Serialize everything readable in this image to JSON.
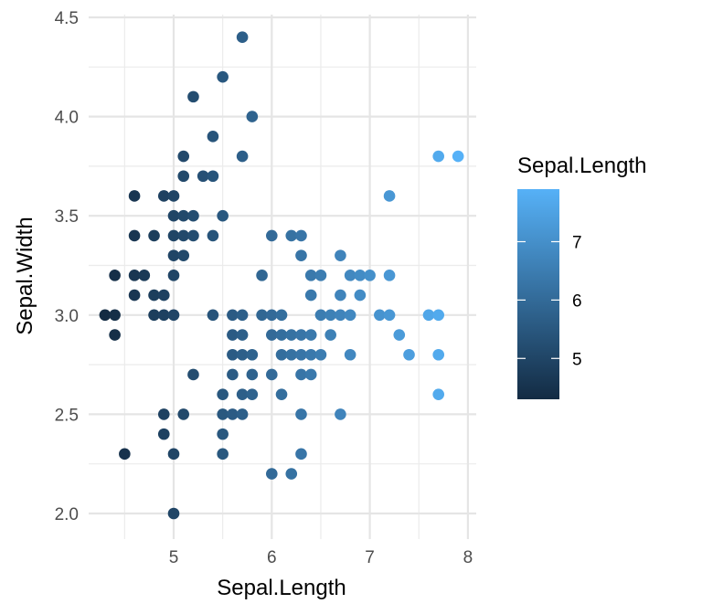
{
  "chart_data": {
    "type": "scatter",
    "xlabel": "Sepal.Length",
    "ylabel": "Sepal.Width",
    "xlim": [
      4.3,
      7.9
    ],
    "ylim": [
      2.0,
      4.4
    ],
    "x_ticks": [
      5,
      6,
      7,
      8
    ],
    "x_tick_labels": [
      "5",
      "6",
      "7",
      "8"
    ],
    "y_ticks": [
      2.0,
      2.5,
      3.0,
      3.5,
      4.0,
      4.5
    ],
    "y_tick_labels": [
      "2.0",
      "2.5",
      "3.0",
      "3.5",
      "4.0",
      "4.5"
    ],
    "grid": true,
    "color_by": "Sepal.Length",
    "legend": {
      "title": "Sepal.Length",
      "placement": "right",
      "type": "colorbar",
      "ticks": [
        5,
        6,
        7
      ],
      "tick_labels": [
        "5",
        "6",
        "7"
      ],
      "low_color": "#132B43",
      "high_color": "#56B1F7"
    },
    "points": [
      [
        4.3,
        3.0
      ],
      [
        4.4,
        3.0
      ],
      [
        4.4,
        2.9
      ],
      [
        4.4,
        3.2
      ],
      [
        4.5,
        2.3
      ],
      [
        4.6,
        3.6
      ],
      [
        4.6,
        3.4
      ],
      [
        4.6,
        3.2
      ],
      [
        4.6,
        3.1
      ],
      [
        4.7,
        3.2
      ],
      [
        4.8,
        3.4
      ],
      [
        4.8,
        3.0
      ],
      [
        4.8,
        3.1
      ],
      [
        4.9,
        3.6
      ],
      [
        4.9,
        3.1
      ],
      [
        4.9,
        3.0
      ],
      [
        4.9,
        2.5
      ],
      [
        4.9,
        2.4
      ],
      [
        5.0,
        3.6
      ],
      [
        5.0,
        3.5
      ],
      [
        5.0,
        3.4
      ],
      [
        5.0,
        3.3
      ],
      [
        5.0,
        3.2
      ],
      [
        5.0,
        3.0
      ],
      [
        5.0,
        2.3
      ],
      [
        5.0,
        2.0
      ],
      [
        5.1,
        3.8
      ],
      [
        5.1,
        3.7
      ],
      [
        5.1,
        3.5
      ],
      [
        5.1,
        3.4
      ],
      [
        5.1,
        3.3
      ],
      [
        5.1,
        2.5
      ],
      [
        5.2,
        4.1
      ],
      [
        5.2,
        3.5
      ],
      [
        5.2,
        3.4
      ],
      [
        5.2,
        2.7
      ],
      [
        5.3,
        3.7
      ],
      [
        5.4,
        3.9
      ],
      [
        5.4,
        3.7
      ],
      [
        5.4,
        3.4
      ],
      [
        5.4,
        3.0
      ],
      [
        5.5,
        4.2
      ],
      [
        5.5,
        3.5
      ],
      [
        5.5,
        2.6
      ],
      [
        5.5,
        2.5
      ],
      [
        5.5,
        2.4
      ],
      [
        5.5,
        2.3
      ],
      [
        5.6,
        3.0
      ],
      [
        5.6,
        2.9
      ],
      [
        5.6,
        2.8
      ],
      [
        5.6,
        2.7
      ],
      [
        5.6,
        2.5
      ],
      [
        5.7,
        4.4
      ],
      [
        5.7,
        3.8
      ],
      [
        5.7,
        3.0
      ],
      [
        5.7,
        2.9
      ],
      [
        5.7,
        2.8
      ],
      [
        5.7,
        2.6
      ],
      [
        5.7,
        2.5
      ],
      [
        5.8,
        4.0
      ],
      [
        5.8,
        2.8
      ],
      [
        5.8,
        2.7
      ],
      [
        5.8,
        2.6
      ],
      [
        5.9,
        3.2
      ],
      [
        5.9,
        3.0
      ],
      [
        6.0,
        3.4
      ],
      [
        6.0,
        3.0
      ],
      [
        6.0,
        2.9
      ],
      [
        6.0,
        2.7
      ],
      [
        6.0,
        2.2
      ],
      [
        6.1,
        3.0
      ],
      [
        6.1,
        2.9
      ],
      [
        6.1,
        2.8
      ],
      [
        6.1,
        2.6
      ],
      [
        6.2,
        3.4
      ],
      [
        6.2,
        2.9
      ],
      [
        6.2,
        2.8
      ],
      [
        6.2,
        2.2
      ],
      [
        6.3,
        3.4
      ],
      [
        6.3,
        3.3
      ],
      [
        6.3,
        2.9
      ],
      [
        6.3,
        2.8
      ],
      [
        6.3,
        2.7
      ],
      [
        6.3,
        2.5
      ],
      [
        6.3,
        2.3
      ],
      [
        6.4,
        3.2
      ],
      [
        6.4,
        3.1
      ],
      [
        6.4,
        2.9
      ],
      [
        6.4,
        2.8
      ],
      [
        6.4,
        2.7
      ],
      [
        6.5,
        3.2
      ],
      [
        6.5,
        3.0
      ],
      [
        6.5,
        2.8
      ],
      [
        6.6,
        3.0
      ],
      [
        6.6,
        2.9
      ],
      [
        6.7,
        3.3
      ],
      [
        6.7,
        3.1
      ],
      [
        6.7,
        3.0
      ],
      [
        6.7,
        2.5
      ],
      [
        6.8,
        3.2
      ],
      [
        6.8,
        3.0
      ],
      [
        6.8,
        2.8
      ],
      [
        6.9,
        3.2
      ],
      [
        6.9,
        3.1
      ],
      [
        7.0,
        3.2
      ],
      [
        7.1,
        3.0
      ],
      [
        7.2,
        3.6
      ],
      [
        7.2,
        3.2
      ],
      [
        7.2,
        3.0
      ],
      [
        7.3,
        2.9
      ],
      [
        7.4,
        2.8
      ],
      [
        7.6,
        3.0
      ],
      [
        7.7,
        3.8
      ],
      [
        7.7,
        3.0
      ],
      [
        7.7,
        2.8
      ],
      [
        7.7,
        2.6
      ],
      [
        7.9,
        3.8
      ]
    ]
  }
}
